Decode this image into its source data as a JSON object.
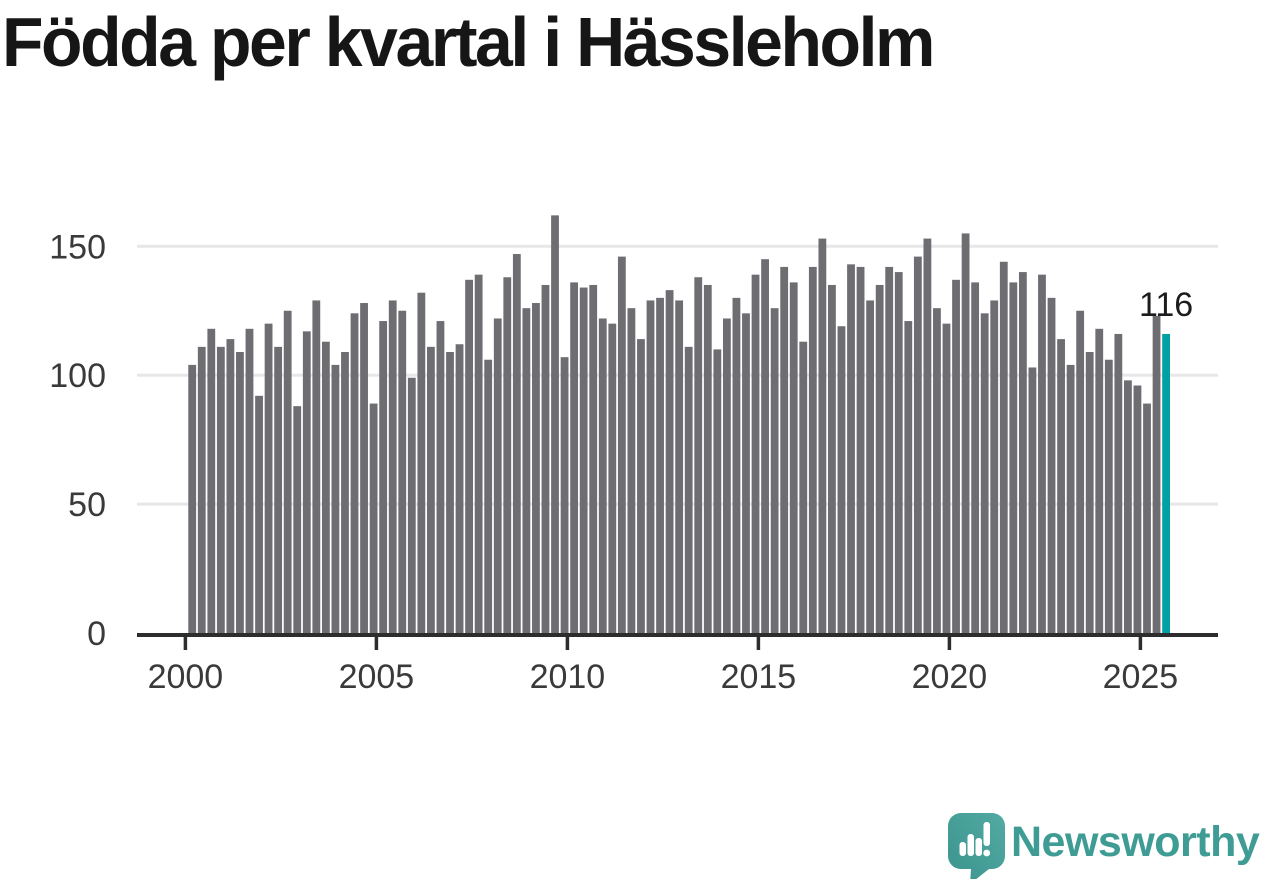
{
  "title": "Födda per kvartal i Hässleholm",
  "chart_data": {
    "type": "bar",
    "title": "Födda per kvartal i Hässleholm",
    "x_start": "2000-Q1",
    "x_end": "2025-Q3",
    "frequency": "quarterly",
    "values": [
      104,
      111,
      118,
      111,
      114,
      109,
      118,
      92,
      120,
      111,
      125,
      88,
      117,
      129,
      113,
      104,
      109,
      124,
      128,
      89,
      121,
      129,
      125,
      99,
      132,
      111,
      121,
      109,
      112,
      137,
      139,
      106,
      122,
      138,
      147,
      126,
      128,
      135,
      162,
      107,
      136,
      134,
      135,
      122,
      120,
      146,
      126,
      114,
      129,
      130,
      133,
      129,
      111,
      138,
      135,
      110,
      122,
      130,
      124,
      139,
      145,
      126,
      142,
      136,
      113,
      142,
      153,
      135,
      119,
      143,
      142,
      129,
      135,
      142,
      140,
      121,
      146,
      153,
      126,
      120,
      137,
      155,
      136,
      124,
      129,
      144,
      136,
      140,
      103,
      139,
      130,
      114,
      104,
      125,
      109,
      118,
      106,
      116,
      98,
      96,
      89,
      123,
      116
    ],
    "highlight": {
      "index": 102,
      "value": 116,
      "label": "116",
      "period": "2025-Q3"
    },
    "xtick_labels": [
      "2000",
      "2005",
      "2010",
      "2015",
      "2020",
      "2025"
    ],
    "yticks": [
      0,
      50,
      100,
      150
    ],
    "ylim": [
      0,
      170
    ],
    "grid": "horizontal",
    "legend": "none",
    "colors": {
      "bar": "#6d6d72",
      "highlight": "#00a0a4",
      "gridline": "#e7e7ea",
      "axis": "#2d2d2d",
      "tick_label": "#3a3a3a",
      "value_label": "#1c1c1c"
    }
  },
  "footer": {
    "brand": "Newsworthy",
    "icon": "newsworthy-speech-bubble-chart-icon",
    "brand_color": "#3f9c95",
    "icon_color_light": "#50a8a1",
    "icon_color_dark": "#3a938c"
  }
}
